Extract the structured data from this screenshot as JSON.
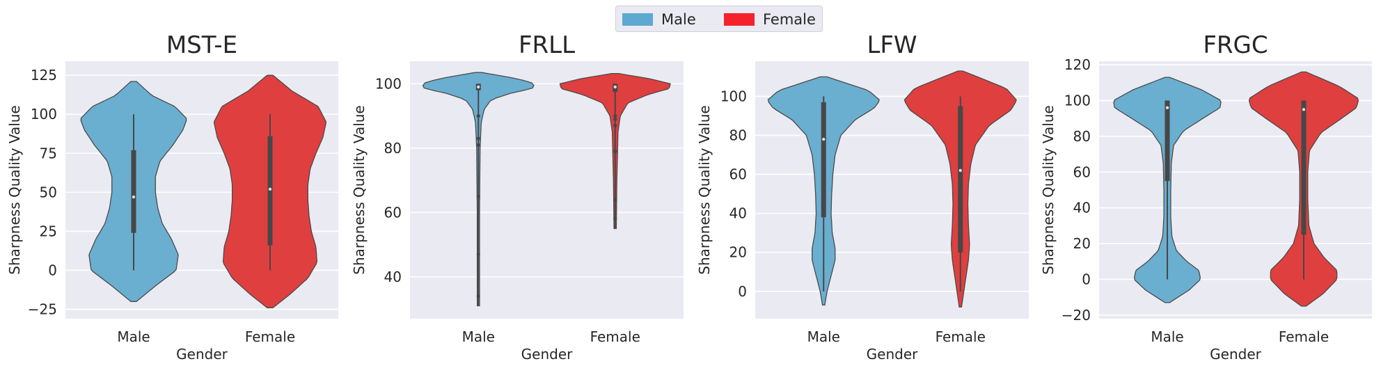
{
  "legend": {
    "items": [
      {
        "label": "Male",
        "color": "#5ea9d2"
      },
      {
        "label": "Female",
        "color": "#f5222b"
      }
    ]
  },
  "colors": {
    "male_fill": "#6aaed0",
    "female_fill": "#df3f3f",
    "background": "#eaeaf2",
    "grid": "#ffffff",
    "box": "#474747"
  },
  "chart_data": [
    {
      "type": "violin",
      "title": "MST-E",
      "xlabel": "Gender",
      "ylabel": "Sharpness Quality Value",
      "categories": [
        "Male",
        "Female"
      ],
      "ylim": [
        -31,
        134
      ],
      "yticks": [
        -25,
        0,
        25,
        50,
        75,
        100,
        125
      ],
      "grid": true,
      "series": [
        {
          "name": "Male",
          "min": 0,
          "q1": 24,
          "median": 47,
          "q3": 77,
          "max": 100,
          "extent": [
            -20,
            121
          ],
          "density": [
            [
              -20,
              0.05
            ],
            [
              -10,
              0.38
            ],
            [
              0,
              0.74
            ],
            [
              10,
              0.78
            ],
            [
              20,
              0.66
            ],
            [
              30,
              0.5
            ],
            [
              40,
              0.42
            ],
            [
              50,
              0.38
            ],
            [
              60,
              0.38
            ],
            [
              70,
              0.46
            ],
            [
              80,
              0.68
            ],
            [
              90,
              0.86
            ],
            [
              97,
              0.93
            ],
            [
              105,
              0.72
            ],
            [
              112,
              0.32
            ],
            [
              121,
              0.05
            ]
          ],
          "points": []
        },
        {
          "name": "Female",
          "min": 0,
          "q1": 16,
          "median": 52,
          "q3": 86,
          "max": 100,
          "extent": [
            -24,
            125
          ],
          "density": [
            [
              -24,
              0.05
            ],
            [
              -15,
              0.36
            ],
            [
              -5,
              0.66
            ],
            [
              5,
              0.82
            ],
            [
              15,
              0.8
            ],
            [
              25,
              0.72
            ],
            [
              35,
              0.68
            ],
            [
              45,
              0.66
            ],
            [
              55,
              0.66
            ],
            [
              65,
              0.7
            ],
            [
              75,
              0.8
            ],
            [
              85,
              0.92
            ],
            [
              95,
              0.98
            ],
            [
              105,
              0.84
            ],
            [
              115,
              0.38
            ],
            [
              125,
              0.05
            ]
          ],
          "points": []
        }
      ]
    },
    {
      "type": "violin",
      "title": "FRLL",
      "xlabel": "Gender",
      "ylabel": "Sharpness Quality Value",
      "categories": [
        "Male",
        "Female"
      ],
      "ylim": [
        27,
        107
      ],
      "yticks": [
        40,
        60,
        80,
        100
      ],
      "grid": true,
      "series": [
        {
          "name": "Male",
          "min": 31,
          "q1": 98,
          "median": 99,
          "q3": 100,
          "max": 100,
          "extent": [
            31,
            103.5
          ],
          "density": [
            [
              31,
              0.02
            ],
            [
              40,
              0.02
            ],
            [
              60,
              0.02
            ],
            [
              80,
              0.03
            ],
            [
              88,
              0.05
            ],
            [
              92,
              0.1
            ],
            [
              95,
              0.22
            ],
            [
              97,
              0.55
            ],
            [
              98.5,
              0.94
            ],
            [
              100,
              0.98
            ],
            [
              101.5,
              0.7
            ],
            [
              103.5,
              0.06
            ]
          ],
          "points": [
            34,
            47,
            65,
            81,
            83,
            90
          ]
        },
        {
          "name": "Female",
          "min": 55,
          "q1": 97.5,
          "median": 99,
          "q3": 100,
          "max": 100,
          "extent": [
            55,
            103.2
          ],
          "density": [
            [
              55,
              0.02
            ],
            [
              70,
              0.03
            ],
            [
              85,
              0.05
            ],
            [
              90,
              0.09
            ],
            [
              94,
              0.22
            ],
            [
              96.5,
              0.55
            ],
            [
              98.5,
              0.94
            ],
            [
              100,
              0.96
            ],
            [
              101.5,
              0.62
            ],
            [
              103.2,
              0.06
            ]
          ],
          "points": [
            58,
            64,
            79,
            87,
            89,
            90
          ]
        }
      ]
    },
    {
      "type": "violin",
      "title": "LFW",
      "xlabel": "Gender",
      "ylabel": "Sharpness Quality Value",
      "categories": [
        "Male",
        "Female"
      ],
      "ylim": [
        -14,
        118
      ],
      "yticks": [
        0,
        20,
        40,
        60,
        80,
        100
      ],
      "grid": true,
      "series": [
        {
          "name": "Male",
          "min": 0,
          "q1": 38,
          "median": 78,
          "q3": 97,
          "max": 100,
          "extent": [
            -7,
            110
          ],
          "density": [
            [
              -7,
              0.02
            ],
            [
              0,
              0.06
            ],
            [
              8,
              0.13
            ],
            [
              16,
              0.2
            ],
            [
              22,
              0.2
            ],
            [
              30,
              0.15
            ],
            [
              40,
              0.13
            ],
            [
              50,
              0.14
            ],
            [
              60,
              0.16
            ],
            [
              70,
              0.2
            ],
            [
              80,
              0.3
            ],
            [
              88,
              0.55
            ],
            [
              94,
              0.88
            ],
            [
              98,
              0.98
            ],
            [
              103,
              0.78
            ],
            [
              110,
              0.06
            ]
          ],
          "points": []
        },
        {
          "name": "Female",
          "min": 0,
          "q1": 20,
          "median": 62,
          "q3": 95,
          "max": 100,
          "extent": [
            -8,
            113
          ],
          "density": [
            [
              -8,
              0.02
            ],
            [
              0,
              0.06
            ],
            [
              8,
              0.1
            ],
            [
              16,
              0.14
            ],
            [
              24,
              0.16
            ],
            [
              34,
              0.14
            ],
            [
              45,
              0.13
            ],
            [
              55,
              0.14
            ],
            [
              65,
              0.18
            ],
            [
              75,
              0.26
            ],
            [
              85,
              0.5
            ],
            [
              93,
              0.88
            ],
            [
              98,
              0.98
            ],
            [
              104,
              0.8
            ],
            [
              110,
              0.3
            ],
            [
              113,
              0.04
            ]
          ],
          "points": []
        }
      ]
    },
    {
      "type": "violin",
      "title": "FRGC",
      "xlabel": "Gender",
      "ylabel": "Sharpness Quality Value",
      "categories": [
        "Male",
        "Female"
      ],
      "ylim": [
        -22,
        122
      ],
      "yticks": [
        -20,
        0,
        20,
        40,
        60,
        80,
        100,
        120
      ],
      "grid": true,
      "series": [
        {
          "name": "Male",
          "min": 0,
          "q1": 55,
          "median": 96,
          "q3": 100,
          "max": 100,
          "extent": [
            -13,
            113
          ],
          "density": [
            [
              -13,
              0.04
            ],
            [
              -6,
              0.38
            ],
            [
              0,
              0.58
            ],
            [
              5,
              0.55
            ],
            [
              10,
              0.34
            ],
            [
              16,
              0.16
            ],
            [
              24,
              0.08
            ],
            [
              35,
              0.06
            ],
            [
              50,
              0.06
            ],
            [
              65,
              0.07
            ],
            [
              75,
              0.11
            ],
            [
              83,
              0.28
            ],
            [
              90,
              0.62
            ],
            [
              96,
              0.92
            ],
            [
              100,
              0.94
            ],
            [
              106,
              0.6
            ],
            [
              113,
              0.04
            ]
          ],
          "points": []
        },
        {
          "name": "Female",
          "min": 0,
          "q1": 25,
          "median": 95,
          "q3": 100,
          "max": 100,
          "extent": [
            -15,
            116
          ],
          "density": [
            [
              -15,
              0.04
            ],
            [
              -8,
              0.34
            ],
            [
              0,
              0.58
            ],
            [
              5,
              0.58
            ],
            [
              12,
              0.36
            ],
            [
              20,
              0.18
            ],
            [
              30,
              0.09
            ],
            [
              45,
              0.07
            ],
            [
              60,
              0.07
            ],
            [
              72,
              0.1
            ],
            [
              82,
              0.3
            ],
            [
              90,
              0.66
            ],
            [
              96,
              0.92
            ],
            [
              101,
              0.96
            ],
            [
              108,
              0.62
            ],
            [
              116,
              0.04
            ]
          ],
          "points": []
        }
      ]
    }
  ]
}
